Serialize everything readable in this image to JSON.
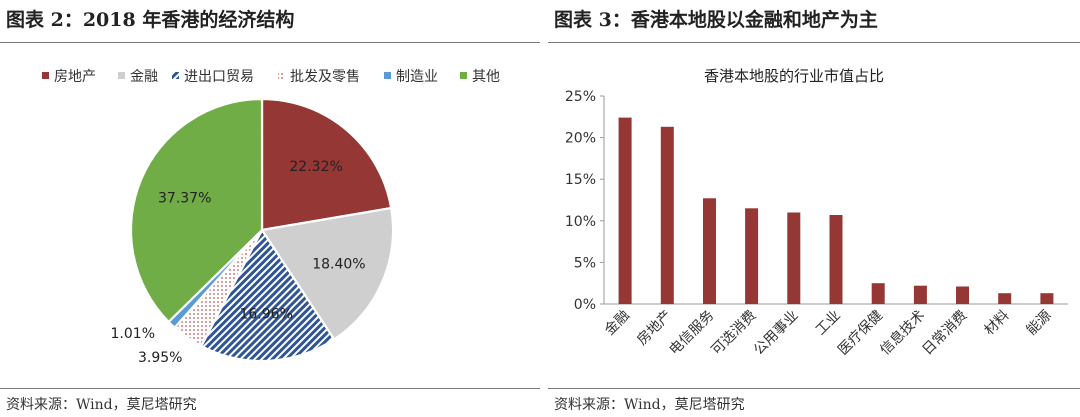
{
  "left": {
    "title": "图表 2：2018 年香港的经济结构",
    "source": "资料来源：Wind，莫尼塔研究"
  },
  "right": {
    "title": "图表 3：香港本地股以金融和地产为主",
    "source": "资料来源：Wind，莫尼塔研究"
  },
  "chart_data": [
    {
      "type": "pie",
      "categories": [
        "房地产",
        "金融",
        "进出口贸易",
        "批发及零售",
        "制造业",
        "其他"
      ],
      "values": [
        22.32,
        18.4,
        16.96,
        3.95,
        1.01,
        37.37
      ],
      "labels": [
        "22.32%",
        "18.40%",
        "16.96%",
        "3.95%",
        "1.01%",
        "37.37%"
      ],
      "colors": [
        "#953735",
        "#cfcfcf",
        "#2f5597",
        "#f2b8b8",
        "#5b9bd5",
        "#70ad47"
      ],
      "patterns": [
        "solid",
        "solid",
        "diagonal-stripes",
        "dots",
        "solid",
        "solid"
      ],
      "legend_position": "top"
    },
    {
      "type": "bar",
      "title": "香港本地股的行业市值占比",
      "categories": [
        "金融",
        "房地产",
        "电信服务",
        "可选消费",
        "公用事业",
        "工业",
        "医疗保健",
        "信息技术",
        "日常消费",
        "材料",
        "能源"
      ],
      "values": [
        22.4,
        21.3,
        12.7,
        11.5,
        11.0,
        10.7,
        2.5,
        2.2,
        2.1,
        1.3,
        1.3
      ],
      "ylim": [
        0,
        25
      ],
      "yticks": [
        0,
        5,
        10,
        15,
        20,
        25
      ],
      "ytick_labels": [
        "0%",
        "5%",
        "10%",
        "15%",
        "20%",
        "25%"
      ],
      "bar_color": "#953735",
      "grid": false
    }
  ]
}
